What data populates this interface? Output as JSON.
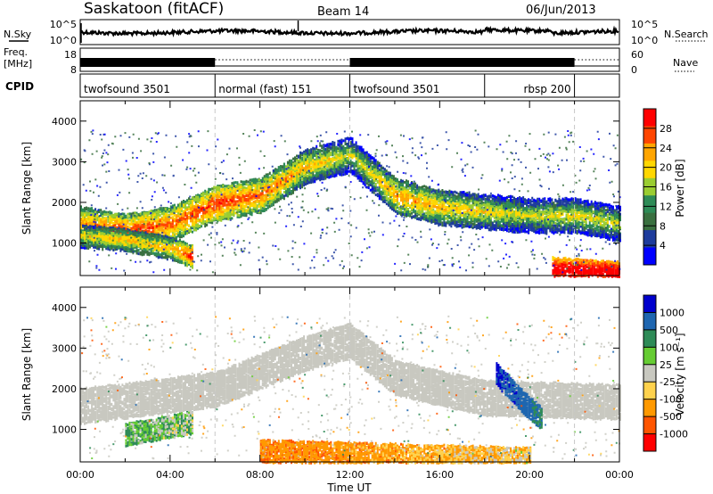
{
  "header": {
    "station": "Saskatoon (fitACF)",
    "beam": "Beam 14",
    "date": "06/Jun/2013"
  },
  "top_panels": {
    "nsky_label": "N.Sky",
    "nsearch_label": "N.Search",
    "noise_ticks_left": [
      "10^5",
      "10^0"
    ],
    "noise_ticks_right": [
      "10^5",
      "10^0"
    ],
    "freq_label_1": "Freq.",
    "freq_label_2": "[MHz]",
    "freq_ticks": [
      "18",
      "8"
    ],
    "nave_label": "Nave",
    "nave_ticks": [
      "60",
      "0"
    ],
    "cpid_label": "CPID",
    "cpid_segments": [
      {
        "label": "twofsound 3501",
        "start_hour": 0,
        "end_hour": 6
      },
      {
        "label": "normal (fast) 151",
        "start_hour": 6,
        "end_hour": 12
      },
      {
        "label": "twofsound 3501",
        "start_hour": 12,
        "end_hour": 18
      },
      {
        "label": "rbsp 200",
        "start_hour": 18,
        "end_hour": 22
      }
    ]
  },
  "colors": {
    "power_scale": [
      "#0000ff",
      "#1e3c9c",
      "#3a7040",
      "#2e8b57",
      "#9acd32",
      "#ffd700",
      "#ffa500",
      "#ff4500",
      "#ff0000"
    ],
    "velocity_scale": [
      "#0000cd",
      "#1e66b0",
      "#2e8b57",
      "#66cc33",
      "#c8c8c0",
      "#ffd24d",
      "#ff9900",
      "#ff5500",
      "#ff0000"
    ],
    "ground_scatter": "#c8c8c0"
  },
  "colorbars": {
    "power": {
      "label": "Power [dB]",
      "ticks": [
        "28",
        "24",
        "20",
        "16",
        "12",
        "8",
        "4"
      ]
    },
    "velocity": {
      "label": "Velocity [m s⁻¹]",
      "ticks": [
        "1000",
        "500",
        "100",
        "25",
        "-25",
        "-100",
        "-500",
        "-1000"
      ]
    }
  },
  "chart_data": [
    {
      "type": "heatmap",
      "title": "Power",
      "xlabel": "Time UT",
      "ylabel": "Slant Range [km]",
      "x_ticks": [
        "00:00",
        "04:00",
        "08:00",
        "12:00",
        "16:00",
        "20:00",
        "00:00"
      ],
      "y_ticks": [
        "1000",
        "2000",
        "3000",
        "4000"
      ],
      "xlim": [
        0,
        24
      ],
      "ylim": [
        200,
        4500
      ],
      "colorbar_range": [
        0,
        30
      ],
      "features": [
        {
          "name": "main echo band",
          "points": [
            [
              0,
              1500,
              16
            ],
            [
              2,
              1300,
              20
            ],
            [
              4,
              1500,
              18
            ],
            [
              6,
              2000,
              20
            ],
            [
              8,
              2200,
              18
            ],
            [
              10,
              2900,
              14
            ],
            [
              12,
              3200,
              10
            ],
            [
              13,
              2700,
              12
            ],
            [
              14,
              2200,
              16
            ],
            [
              16,
              1900,
              14
            ],
            [
              18,
              1800,
              12
            ],
            [
              20,
              1700,
              10
            ],
            [
              22,
              1700,
              12
            ],
            [
              24,
              1500,
              10
            ]
          ]
        },
        {
          "name": "lower echo band",
          "points": [
            [
              0,
              1200,
              12
            ],
            [
              2,
              1100,
              14
            ],
            [
              4,
              900,
              14
            ],
            [
              5,
              700,
              22
            ]
          ]
        },
        {
          "name": "near range echoes",
          "points": [
            [
              21,
              400,
              28
            ],
            [
              24,
              300,
              30
            ]
          ]
        }
      ]
    },
    {
      "type": "heatmap",
      "title": "Velocity",
      "xlabel": "Time UT",
      "ylabel": "Slant Range [km]",
      "x_ticks": [
        "00:00",
        "04:00",
        "08:00",
        "12:00",
        "16:00",
        "20:00",
        "00:00"
      ],
      "y_ticks": [
        "1000",
        "2000",
        "3000",
        "4000"
      ],
      "xlim": [
        0,
        24
      ],
      "ylim": [
        200,
        4500
      ],
      "colorbar_range": [
        -1000,
        1000
      ],
      "features": [
        {
          "name": "ground scatter band",
          "points": [
            [
              0,
              1600,
              0
            ],
            [
              6,
              2000,
              0
            ],
            [
              10,
              2900,
              0
            ],
            [
              12,
              3200,
              0
            ],
            [
              14,
              2300,
              0
            ],
            [
              18,
              1800,
              0
            ],
            [
              24,
              1700,
              0
            ]
          ]
        },
        {
          "name": "positive velocity patch",
          "points": [
            [
              18.5,
              2400,
              800
            ],
            [
              19.5,
              1800,
              600
            ],
            [
              20.5,
              1300,
              300
            ]
          ]
        },
        {
          "name": "negative velocity near range",
          "points": [
            [
              8,
              500,
              -300
            ],
            [
              14,
              400,
              -200
            ],
            [
              20,
              300,
              -100
            ]
          ]
        },
        {
          "name": "early green patch",
          "points": [
            [
              2,
              900,
              150
            ],
            [
              5,
              1200,
              100
            ]
          ]
        }
      ]
    }
  ]
}
